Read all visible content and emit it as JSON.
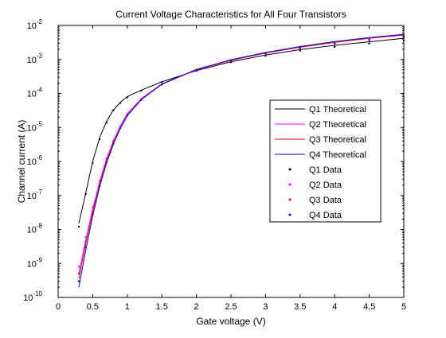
{
  "chart_data": {
    "type": "line",
    "title": "Current Voltage Characteristics for All Four Transistors",
    "xlabel": "Gate voltage (V)",
    "ylabel": "Channel current (A)",
    "xlim": [
      0,
      5
    ],
    "ylim": [
      1e-10,
      0.01
    ],
    "y_scale": "log",
    "grid": false,
    "legend_placement": "right",
    "x_tick_labels": [
      "0",
      "0.5",
      "1",
      "1.5",
      "2",
      "2.5",
      "3",
      "3.5",
      "4",
      "4.5",
      "5"
    ],
    "y_tick_labels": [
      {
        "base": "10",
        "exp": "-10"
      },
      {
        "base": "10",
        "exp": "-9"
      },
      {
        "base": "10",
        "exp": "-8"
      },
      {
        "base": "10",
        "exp": "-7"
      },
      {
        "base": "10",
        "exp": "-6"
      },
      {
        "base": "10",
        "exp": "-5"
      },
      {
        "base": "10",
        "exp": "-4"
      },
      {
        "base": "10",
        "exp": "-3"
      },
      {
        "base": "10",
        "exp": "-2"
      }
    ],
    "theoretical": [
      {
        "name": "Q1 Theoretical",
        "color": "#000000",
        "x": [
          0.3,
          0.4,
          0.5,
          0.6,
          0.7,
          0.8,
          0.9,
          1.0,
          1.2,
          1.5,
          2.0,
          2.5,
          3.0,
          3.5,
          4.0,
          4.5,
          5.0
        ],
        "y": [
          1.5e-08,
          1.2e-07,
          1e-06,
          5e-06,
          1.5e-05,
          3.3e-05,
          5.5e-05,
          8e-05,
          0.000125,
          0.00022,
          0.00047,
          0.00086,
          0.00135,
          0.00195,
          0.0026,
          0.0033,
          0.0042
        ]
      },
      {
        "name": "Q2 Theoretical",
        "color": "#ff00ff",
        "x": [
          0.3,
          0.4,
          0.5,
          0.6,
          0.7,
          0.8,
          0.9,
          1.0,
          1.2,
          1.5,
          2.0,
          2.5,
          3.0,
          3.5,
          4.0,
          4.5,
          5.0
        ],
        "y": [
          5e-10,
          5e-09,
          4e-08,
          2.5e-07,
          1.2e-06,
          4e-06,
          1.1e-05,
          2.5e-05,
          7e-05,
          0.00019,
          0.0005,
          0.00095,
          0.00155,
          0.0023,
          0.0032,
          0.0042,
          0.0052
        ]
      },
      {
        "name": "Q3 Theoretical",
        "color": "#ff0000",
        "x": [
          0.3,
          0.4,
          0.5,
          0.6,
          0.7,
          0.8,
          0.9,
          1.0,
          1.2,
          1.5,
          2.0,
          2.5,
          3.0,
          3.5,
          4.0,
          4.5,
          5.0
        ],
        "y": [
          3.5e-10,
          3.8e-09,
          3.2e-08,
          2.1e-07,
          1.05e-06,
          3.6e-06,
          1e-05,
          2.3e-05,
          6.6e-05,
          0.000185,
          0.000495,
          0.00094,
          0.00155,
          0.0023,
          0.0032,
          0.0042,
          0.0053
        ]
      },
      {
        "name": "Q4 Theoretical",
        "color": "#0000ff",
        "x": [
          0.3,
          0.4,
          0.5,
          0.6,
          0.7,
          0.8,
          0.9,
          1.0,
          1.2,
          1.5,
          2.0,
          2.5,
          3.0,
          3.5,
          4.0,
          4.5,
          5.0
        ],
        "y": [
          2e-10,
          2.5e-09,
          2.5e-08,
          1.8e-07,
          9e-07,
          3.2e-06,
          9.5e-06,
          2.2e-05,
          6.5e-05,
          0.00019,
          0.00051,
          0.00098,
          0.0016,
          0.0024,
          0.00335,
          0.0044,
          0.0055
        ]
      }
    ],
    "data": [
      {
        "name": "Q1 Data",
        "color": "#000000",
        "x": [
          0.3,
          0.4,
          0.5,
          0.6,
          0.7,
          0.8,
          0.9,
          1.0,
          1.2,
          1.5,
          2.0,
          2.5,
          3.0,
          3.5,
          4.0,
          4.5,
          5.0
        ],
        "y": [
          1.2e-08,
          1.1e-07,
          9e-07,
          4.5e-06,
          1.4e-05,
          3.2e-05,
          5.3e-05,
          7.7e-05,
          0.00012,
          0.000215,
          0.00046,
          0.00083,
          0.00128,
          0.0018,
          0.00235,
          0.00295,
          0.0036
        ]
      },
      {
        "name": "Q2 Data",
        "color": "#ff00ff",
        "x": [
          0.3,
          0.4,
          0.5,
          0.6,
          0.7,
          0.8,
          0.9,
          1.0,
          1.2,
          1.5,
          2.0,
          2.5,
          3.0,
          3.5,
          4.0,
          4.5,
          5.0
        ],
        "y": [
          8e-10,
          6e-09,
          4.5e-08,
          2.7e-07,
          1.25e-06,
          4.1e-06,
          1.1e-05,
          2.5e-05,
          6.9e-05,
          0.000185,
          0.00048,
          0.0009,
          0.00145,
          0.0021,
          0.00285,
          0.0036,
          0.0044
        ]
      },
      {
        "name": "Q3 Data",
        "color": "#ff0000",
        "x": [
          0.3,
          0.4,
          0.5,
          0.6,
          0.7,
          0.8,
          0.9,
          1.0,
          1.2,
          1.5,
          2.0,
          2.5,
          3.0,
          3.5,
          4.0,
          4.5,
          5.0
        ],
        "y": [
          5e-10,
          4.5e-09,
          3.5e-08,
          2.2e-07,
          1.1e-06,
          3.7e-06,
          1e-05,
          2.3e-05,
          6.5e-05,
          0.00018,
          0.00048,
          0.0009,
          0.00145,
          0.0021,
          0.0029,
          0.0037,
          0.0046
        ]
      },
      {
        "name": "Q4 Data",
        "color": "#0000ff",
        "x": [
          0.3,
          0.4,
          0.5,
          0.6,
          0.7,
          0.8,
          0.9,
          1.0,
          1.2,
          1.5,
          2.0,
          2.5,
          3.0,
          3.5,
          4.0,
          4.5,
          5.0
        ],
        "y": [
          3e-10,
          3e-09,
          2.8e-08,
          1.9e-07,
          9.5e-07,
          3.3e-06,
          9.6e-06,
          2.2e-05,
          6.4e-05,
          0.000185,
          0.00049,
          0.00093,
          0.0015,
          0.0022,
          0.003,
          0.00385,
          0.0048
        ]
      }
    ]
  }
}
